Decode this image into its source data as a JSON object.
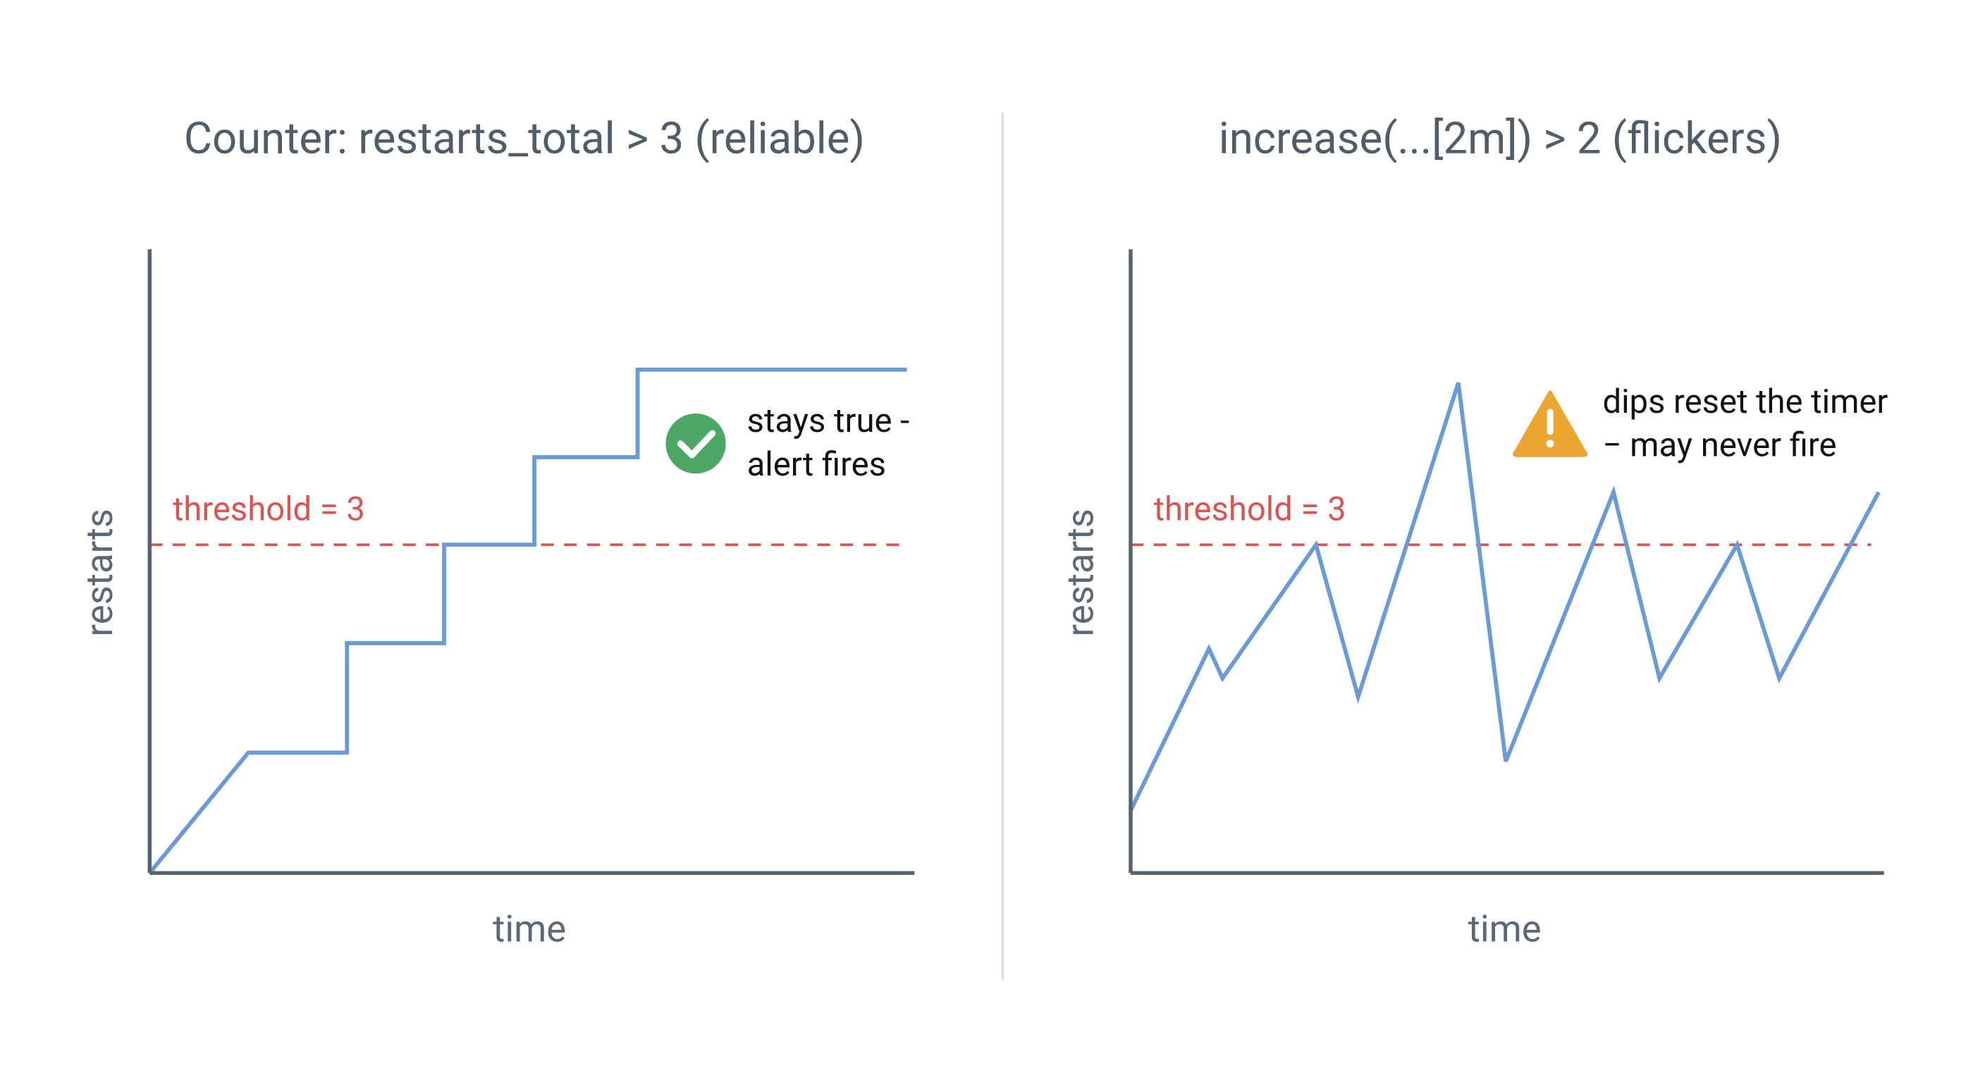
{
  "chart_data": [
    {
      "type": "line",
      "title": "Counter: restarts_total > 3 (reliable)",
      "x_label": "time",
      "y_label": "restarts",
      "x": [
        0,
        1.29,
        2.58,
        2.58,
        3.85,
        3.85,
        5.03,
        5.03,
        6.38,
        6.38,
        9.9
      ],
      "series": [
        {
          "color": "#6a9bd8",
          "values": [
            0,
            1.1,
            1.1,
            2.1,
            2.1,
            3,
            3,
            3.8,
            3.8,
            4.6,
            4.6
          ]
        }
      ],
      "xlim": [
        0,
        10
      ],
      "ylim": [
        0,
        5.7
      ],
      "threshold": {
        "value": 3,
        "label": "threshold = 3",
        "color": "#d9534f"
      },
      "annotation": [
        "stays true -",
        "alert fires"
      ]
    },
    {
      "type": "line",
      "title": "increase(...[2m]) > 2 (flickers)",
      "x_label": "time",
      "y_label": "restarts",
      "x": [
        0,
        1.04,
        1.22,
        2.46,
        3.02,
        4.35,
        4.98,
        6.41,
        7.02,
        8.05,
        8.61,
        9.93
      ],
      "series": [
        {
          "color": "#6a9bd8",
          "values": [
            0.57,
            2.05,
            1.78,
            3,
            1.61,
            4.48,
            1.02,
            3.48,
            1.78,
            3,
            1.78,
            3.48
          ]
        }
      ],
      "xlim": [
        0,
        10
      ],
      "ylim": [
        0,
        5.7
      ],
      "threshold": {
        "value": 3,
        "label": "threshold = 3",
        "color": "#d9534f"
      },
      "annotation": [
        "dips reset the timer",
        "− may never fire"
      ]
    }
  ]
}
